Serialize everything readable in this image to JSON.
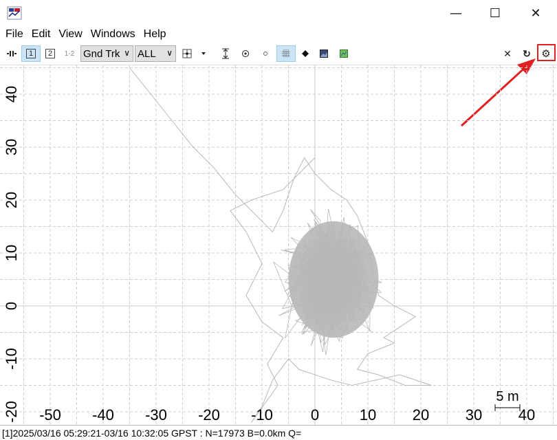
{
  "window": {
    "minimize_glyph": "—",
    "maximize_glyph": "☐",
    "close_glyph": "✕"
  },
  "menu": [
    "File",
    "Edit",
    "View",
    "Windows",
    "Help"
  ],
  "toolbar": {
    "plot1_label": "1",
    "plot2_label": "2",
    "plot12_label": "1-2",
    "plot_type": "Gnd Trk",
    "sat_filter": "ALL",
    "close_glyph": "✕",
    "refresh_glyph": "↻",
    "settings_glyph": "⚙",
    "colors": {
      "pressed": "#cce4f7",
      "highlight": "#e02020"
    }
  },
  "chart_data": {
    "type": "scatter",
    "x_ticks": [
      "-50",
      "-40",
      "-30",
      "-20",
      "-10",
      "0",
      "10",
      "20",
      "30",
      "40"
    ],
    "y_ticks": [
      "40",
      "30",
      "20",
      "10",
      "0",
      "-10",
      "-20"
    ],
    "xlim": [
      -55,
      45
    ],
    "ylim": [
      -21,
      46
    ],
    "grid": true,
    "scale_label": "5 m",
    "series": [
      {
        "values_desc": "ground track E-N offsets",
        "color": "#b8b8b8"
      }
    ],
    "track_outline": [
      [
        -35,
        45
      ],
      [
        -31,
        40
      ],
      [
        -27,
        35
      ],
      [
        -23,
        30
      ],
      [
        -19,
        26
      ],
      [
        -15,
        21
      ],
      [
        -12,
        18
      ],
      [
        -10,
        16
      ],
      [
        -8,
        14
      ],
      [
        -6,
        18
      ],
      [
        -4,
        24
      ],
      [
        -2,
        28
      ],
      [
        0,
        25
      ],
      [
        3,
        22
      ],
      [
        6,
        20
      ],
      [
        8,
        17
      ],
      [
        10,
        12
      ],
      [
        11,
        6
      ],
      [
        12,
        2
      ],
      [
        15,
        0
      ],
      [
        19,
        -2
      ],
      [
        16,
        -4
      ],
      [
        13,
        -6
      ],
      [
        15,
        -7
      ],
      [
        10,
        -9
      ],
      [
        8,
        -12
      ],
      [
        12,
        -13
      ],
      [
        17,
        -15
      ],
      [
        22,
        -15
      ],
      [
        16,
        -13
      ],
      [
        7,
        -15
      ],
      [
        3,
        -14
      ],
      [
        -3,
        -12
      ],
      [
        -5,
        -10
      ],
      [
        -8,
        -14
      ],
      [
        -10,
        -19
      ],
      [
        -12,
        -22
      ],
      [
        -7,
        -15
      ],
      [
        -9,
        -11
      ],
      [
        -6,
        -6
      ],
      [
        -10,
        -3
      ],
      [
        -13,
        2
      ],
      [
        -10,
        8
      ],
      [
        -13,
        14
      ],
      [
        -16,
        18
      ],
      [
        -12,
        20
      ],
      [
        -6,
        22
      ],
      [
        0,
        28
      ]
    ]
  },
  "status": {
    "text": "[1]2025/03/16 05:29:21-03/16 10:32:05 GPST : N=17973 B=0.0km Q="
  }
}
